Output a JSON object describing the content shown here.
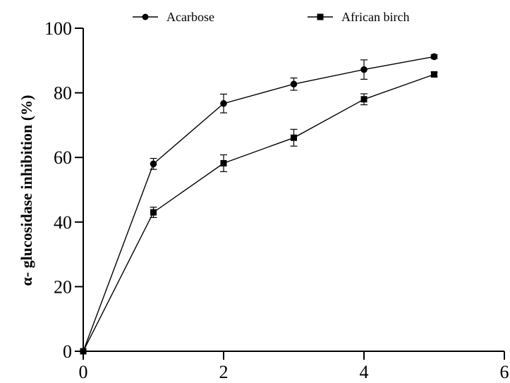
{
  "chart_data": {
    "type": "line",
    "title": "",
    "xlabel": "",
    "ylabel": "α- glucosidase inhibition (%)",
    "xlim": [
      0,
      6
    ],
    "ylim": [
      0,
      100
    ],
    "xticks": [
      0,
      2,
      4,
      6
    ],
    "yticks": [
      0,
      20,
      40,
      60,
      80,
      100
    ],
    "grid": false,
    "legend": "top",
    "x": [
      0,
      1,
      2,
      3,
      4,
      5
    ],
    "series": [
      {
        "name": "Acarbose",
        "marker": "circle",
        "values": [
          0,
          58,
          76.7,
          82.7,
          87.2,
          91.2
        ],
        "errors": [
          0,
          1.7,
          2.9,
          1.9,
          3.0,
          0.6
        ]
      },
      {
        "name": "African birch",
        "marker": "square",
        "values": [
          0,
          43,
          58.2,
          66.1,
          78,
          85.7
        ],
        "errors": [
          0,
          1.6,
          2.6,
          2.6,
          1.7,
          0.7
        ]
      }
    ],
    "colors": {
      "line": "#000000",
      "marker": "#000000"
    }
  }
}
